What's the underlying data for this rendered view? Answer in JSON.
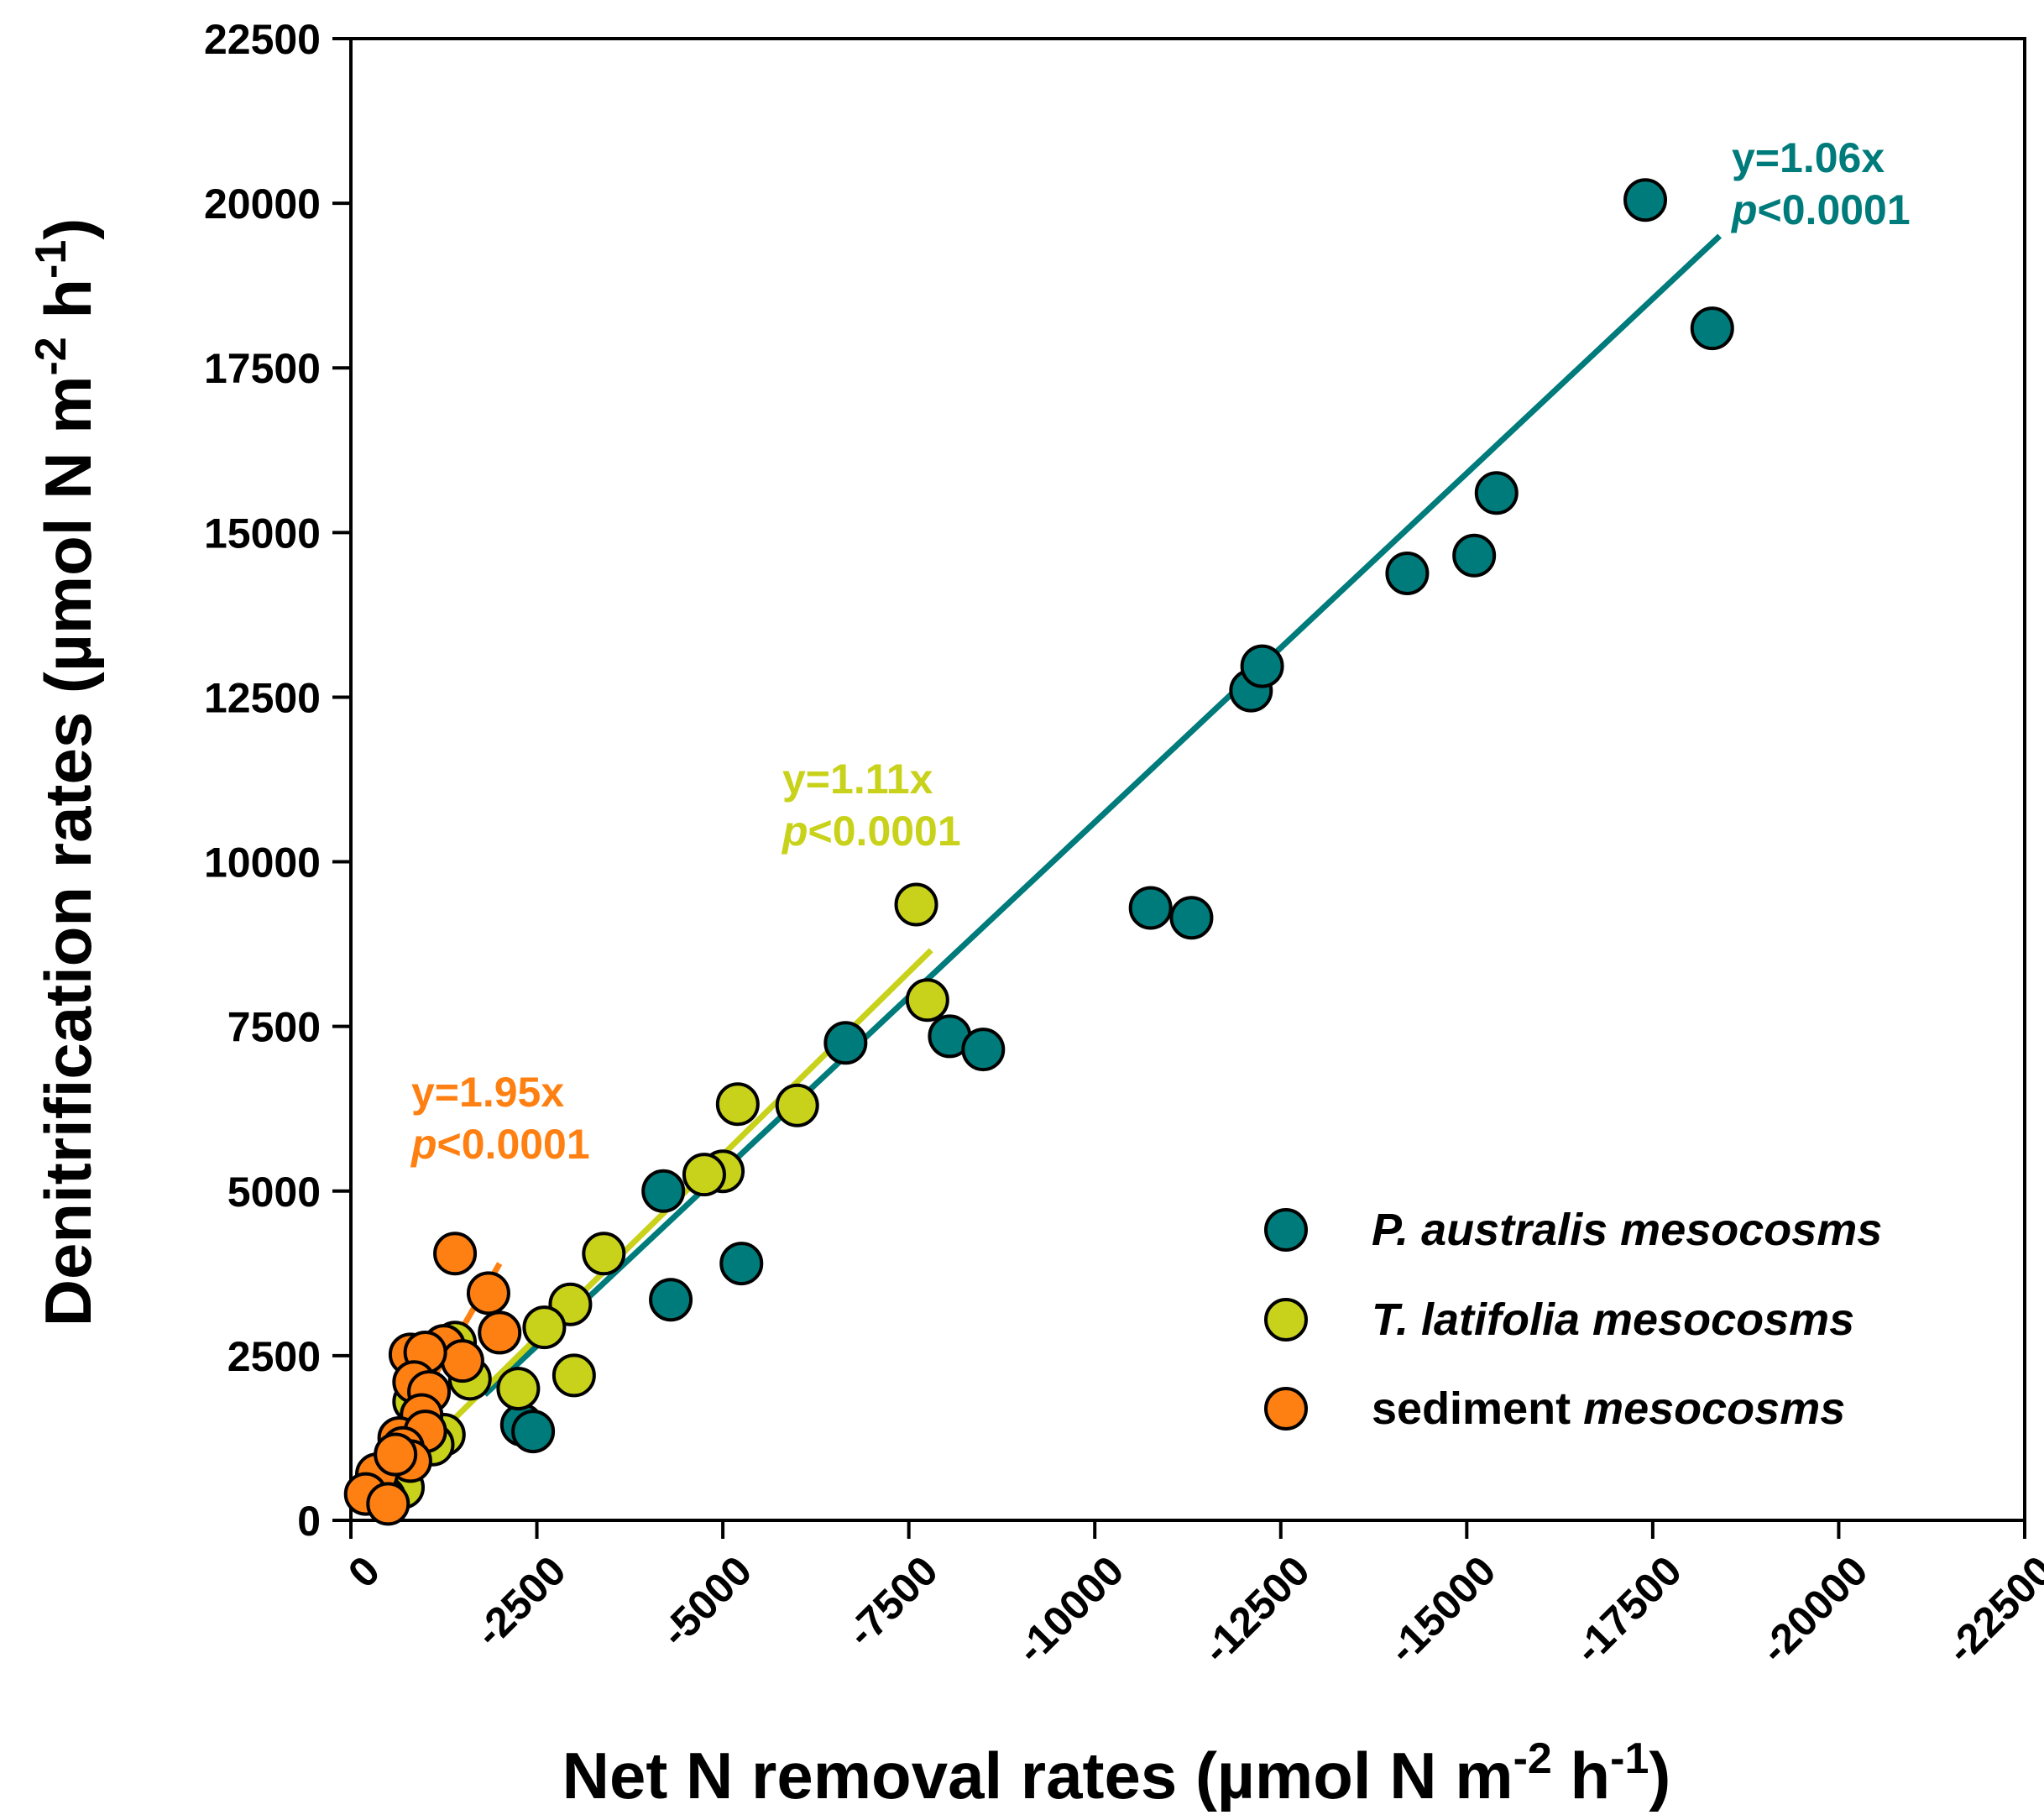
{
  "chart_data": {
    "type": "scatter",
    "title": "",
    "xlabel": {
      "main": "Net N removal rates (µmol N m",
      "sup1": "-2",
      "mid": " h",
      "sup2": "-1",
      "end": ")"
    },
    "ylabel": {
      "main": "Denitrification rates (µmol N m",
      "sup1": "-2",
      "mid": " h",
      "sup2": "-1",
      "end": ")"
    },
    "xlim": [
      0,
      -22500
    ],
    "ylim": [
      0,
      22500
    ],
    "xticks": [
      0,
      -2500,
      -5000,
      -7500,
      -10000,
      -12500,
      -15000,
      -17500,
      -20000,
      -22500
    ],
    "xtick_labels": [
      "0",
      "-2500",
      "-5000",
      "-7500",
      "-10000",
      "-12500",
      "-15000",
      "-17500",
      "-20000",
      "-22500"
    ],
    "yticks": [
      0,
      2500,
      5000,
      7500,
      10000,
      12500,
      15000,
      17500,
      20000,
      22500
    ],
    "ytick_labels": [
      "0",
      "2500",
      "5000",
      "7500",
      "10000",
      "12500",
      "15000",
      "17500",
      "20000",
      "22500"
    ],
    "grid": false,
    "legend_position": "bottom-right",
    "series": [
      {
        "name": "P. australis mesocosms",
        "legend": {
          "italic": "P. australis mesocosms",
          "normal": ""
        },
        "color": "#007b7b",
        "points": [
          [
            -17400,
            20050
          ],
          [
            -18300,
            18100
          ],
          [
            -15400,
            15600
          ],
          [
            -14200,
            14380
          ],
          [
            -15100,
            14650
          ],
          [
            -12100,
            12600
          ],
          [
            -12250,
            12970
          ],
          [
            -10750,
            9300
          ],
          [
            -11300,
            9150
          ],
          [
            -6650,
            7250
          ],
          [
            -8050,
            7350
          ],
          [
            -8500,
            7150
          ],
          [
            -4200,
            5000
          ],
          [
            -5250,
            3900
          ],
          [
            -4300,
            3350
          ],
          [
            -2300,
            1450
          ],
          [
            -2450,
            1350
          ]
        ],
        "fit": {
          "x_start": -1800,
          "x_end": -18400,
          "label": "y=1.06x",
          "p_italic": "p",
          "p_rest": "<0.0001"
        }
      },
      {
        "name": "T. latifolia mesocosms",
        "legend": {
          "italic": "T. latifolia mesocosms",
          "normal": ""
        },
        "color": "#c8d21a",
        "points": [
          [
            -7600,
            9350
          ],
          [
            -7750,
            7900
          ],
          [
            -6000,
            6300
          ],
          [
            -5200,
            6320
          ],
          [
            -5000,
            5300
          ],
          [
            -4750,
            5250
          ],
          [
            -3400,
            4050
          ],
          [
            -2950,
            3280
          ],
          [
            -2600,
            2930
          ],
          [
            -3000,
            2200
          ],
          [
            -2250,
            2000
          ],
          [
            -1600,
            2150
          ],
          [
            -1400,
            2700
          ],
          [
            -1250,
            1300
          ],
          [
            -1100,
            1150
          ],
          [
            -850,
            1800
          ],
          [
            -650,
            900
          ],
          [
            -700,
            500
          ],
          [
            -450,
            350
          ]
        ],
        "fit": {
          "x_start": -300,
          "x_end": -7800,
          "label": "y=1.11x",
          "p_italic": "p",
          "p_rest": "<0.0001"
        }
      },
      {
        "name": "sediment mesocosms",
        "legend": {
          "italic": "mesocosms",
          "normal": "sediment "
        },
        "color": "#ff8012",
        "points": [
          [
            -1400,
            4050
          ],
          [
            -1850,
            3450
          ],
          [
            -2000,
            2850
          ],
          [
            -1250,
            2650
          ],
          [
            -1500,
            2420
          ],
          [
            -800,
            2520
          ],
          [
            -1000,
            2550
          ],
          [
            -850,
            2100
          ],
          [
            -1050,
            1950
          ],
          [
            -950,
            1600
          ],
          [
            -650,
            1250
          ],
          [
            -1000,
            1350
          ],
          [
            -700,
            1100
          ],
          [
            -800,
            900
          ],
          [
            -350,
            700
          ],
          [
            -600,
            1000
          ],
          [
            -200,
            400
          ],
          [
            -500,
            250
          ]
        ],
        "fit": {
          "x_start": -300,
          "x_end": -2000,
          "label": "y=1.95x",
          "p_italic": "p",
          "p_rest": "<0.0001"
        }
      }
    ]
  }
}
